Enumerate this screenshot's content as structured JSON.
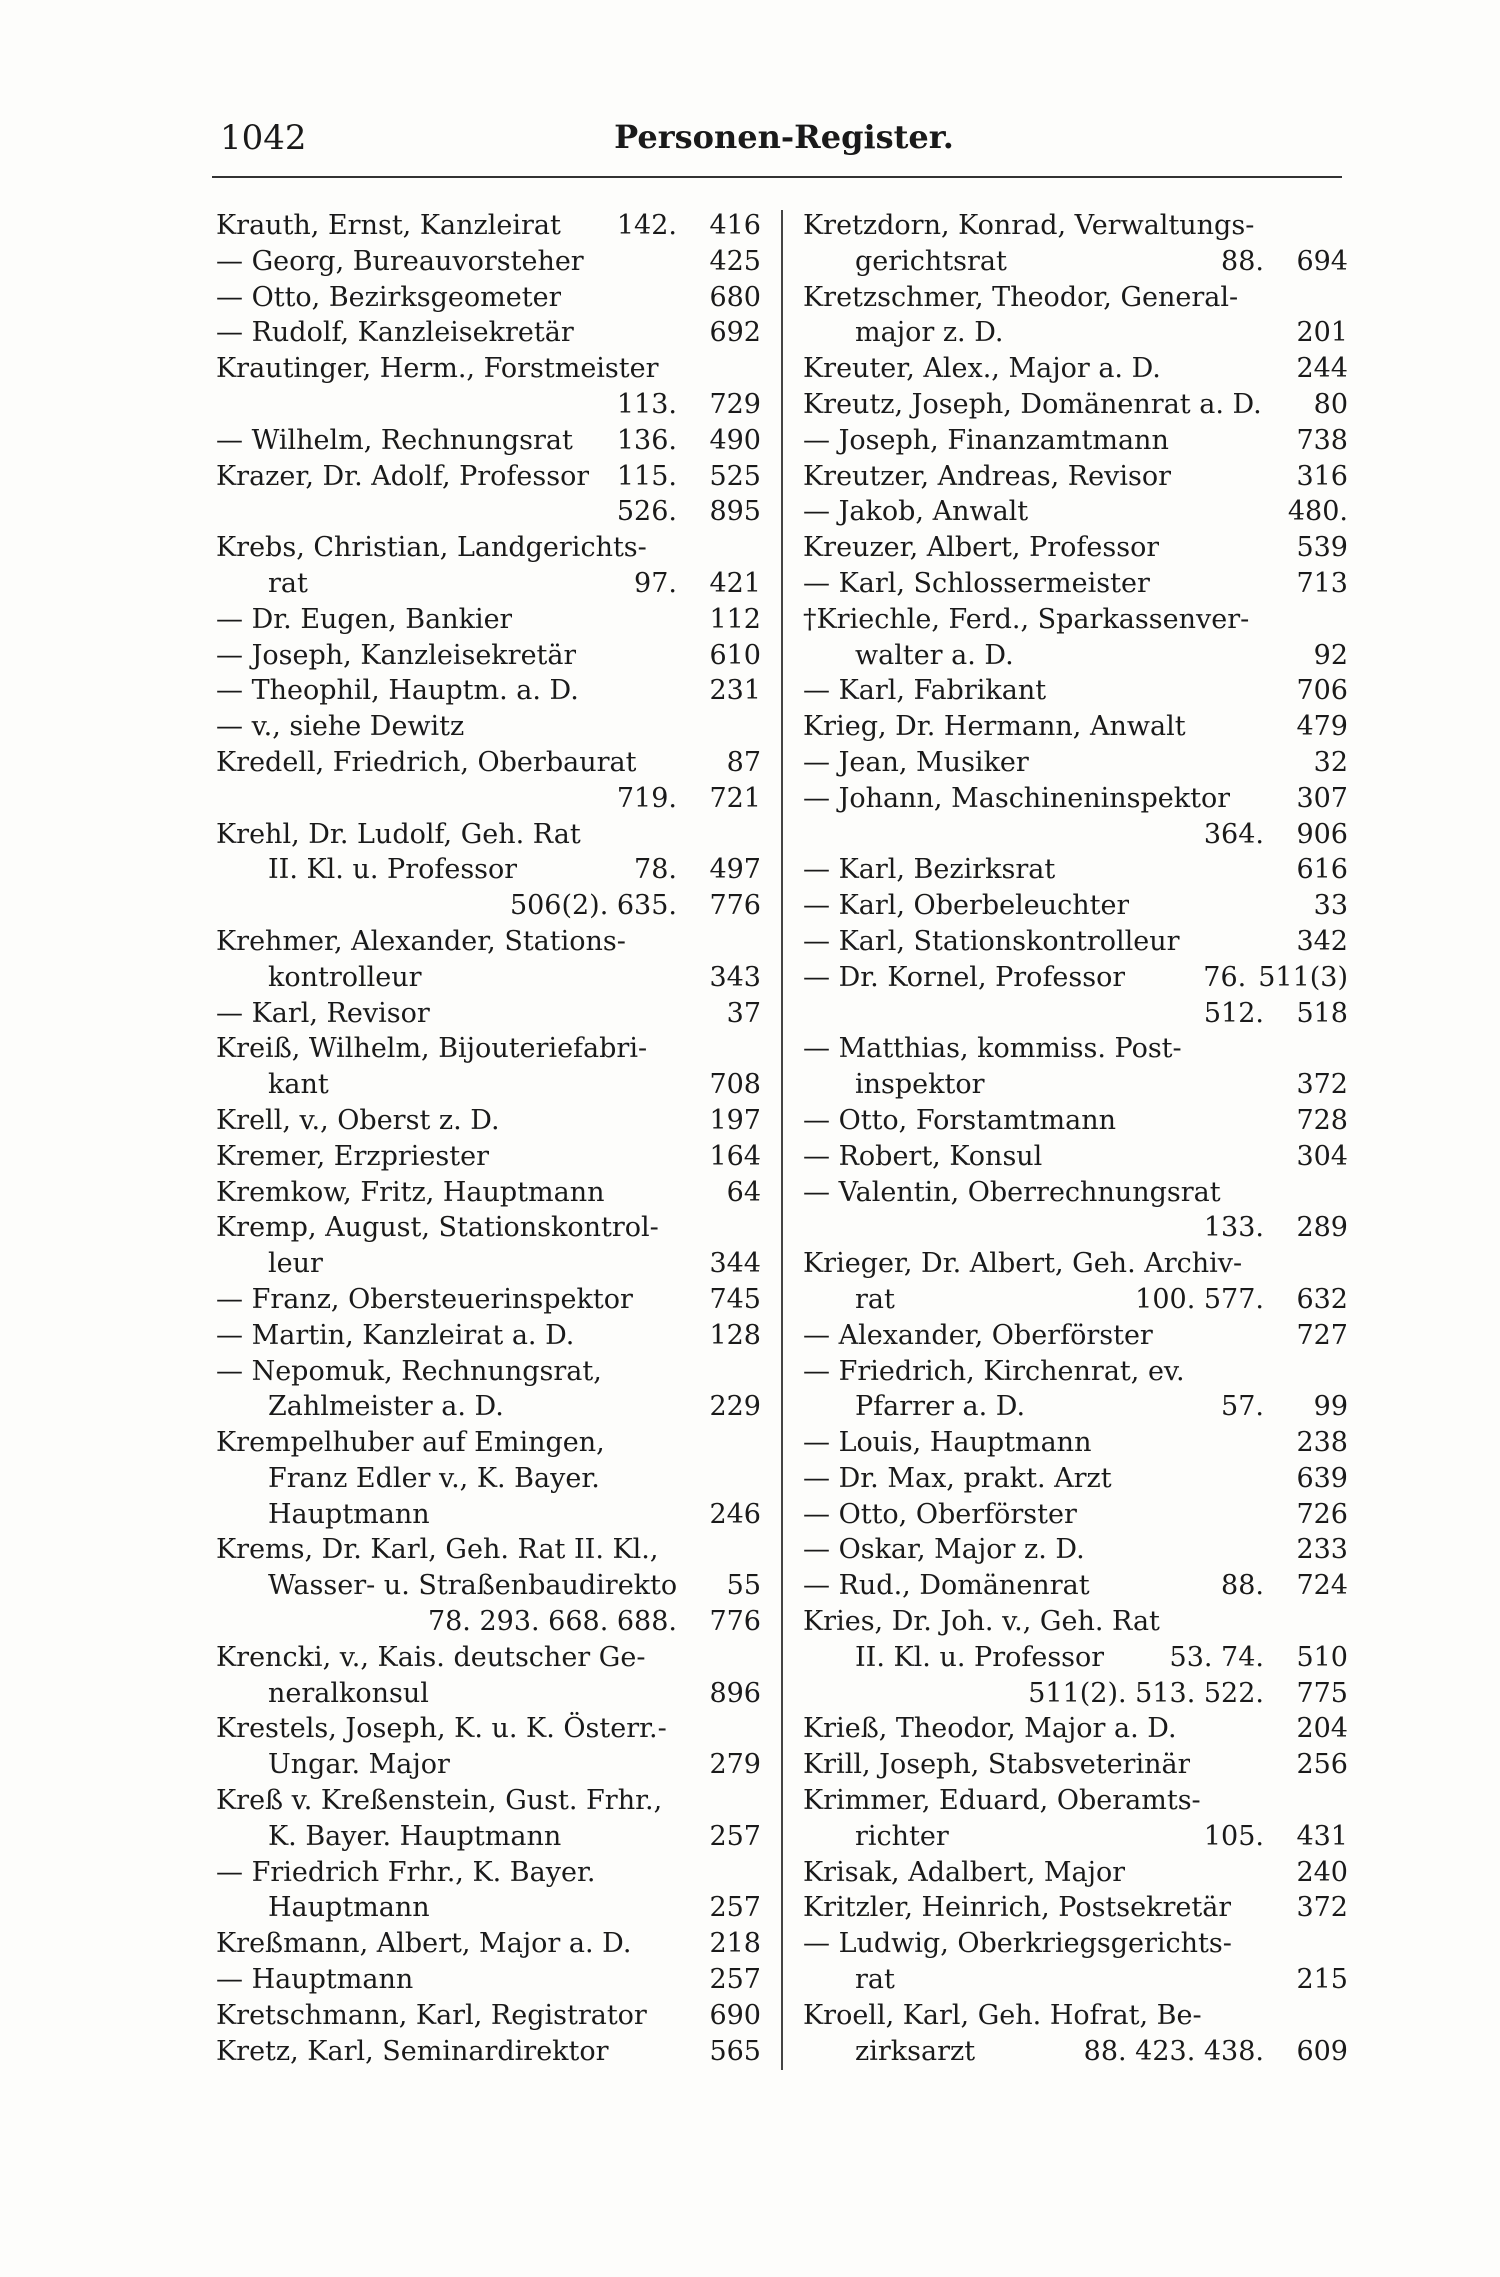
{
  "header": {
    "page_number": "1042",
    "title": "Personen-Register."
  },
  "left_column": [
    {
      "t": "Krauth, Ernst, Kanzleirat",
      "r": "142.",
      "n": "416"
    },
    {
      "t": "— Georg, Bureauvorsteher",
      "r": "",
      "n": "425"
    },
    {
      "t": "— Otto, Bezirksgeometer",
      "r": "",
      "n": "680"
    },
    {
      "t": "— Rudolf, Kanzleisekretär",
      "r": "",
      "n": "692"
    },
    {
      "t": "Krautinger, Herm., Forstmeister",
      "r": "",
      "n": ""
    },
    {
      "t": "",
      "r": "113.",
      "n": "729",
      "indent": true
    },
    {
      "t": "— Wilhelm, Rechnungsrat",
      "r": "136.",
      "n": "490"
    },
    {
      "t": "Krazer, Dr. Adolf, Professor",
      "r": "115.",
      "n": "525"
    },
    {
      "t": "",
      "r": "526.",
      "n": "895",
      "indent": true
    },
    {
      "t": "Krebs, Christian, Landgerichts-",
      "r": "",
      "n": ""
    },
    {
      "t": "rat",
      "r": "97.",
      "n": "421",
      "indent": true
    },
    {
      "t": "— Dr. Eugen, Bankier",
      "r": "",
      "n": "112"
    },
    {
      "t": "— Joseph, Kanzleisekretär",
      "r": "",
      "n": "610"
    },
    {
      "t": "— Theophil, Hauptm. a. D.",
      "r": "",
      "n": "231"
    },
    {
      "t": "— v., siehe Dewitz",
      "r": "",
      "n": ""
    },
    {
      "t": "Kredell, Friedrich, Oberbaurat",
      "r": "",
      "n": "87"
    },
    {
      "t": "",
      "r": "719.",
      "n": "721",
      "indent": true
    },
    {
      "t": "Krehl, Dr. Ludolf, Geh. Rat",
      "r": "",
      "n": ""
    },
    {
      "t": "II. Kl. u. Professor",
      "r": "78.",
      "n": "497",
      "indent": true
    },
    {
      "t": "",
      "r": "506(2). 635.",
      "n": "776",
      "indent": true
    },
    {
      "t": "Krehmer, Alexander, Stations-",
      "r": "",
      "n": ""
    },
    {
      "t": "kontrolleur",
      "r": "",
      "n": "343",
      "indent": true
    },
    {
      "t": "— Karl, Revisor",
      "r": "",
      "n": "37"
    },
    {
      "t": "Kreiß, Wilhelm, Bijouteriefabri-",
      "r": "",
      "n": ""
    },
    {
      "t": "kant",
      "r": "",
      "n": "708",
      "indent": true
    },
    {
      "t": "Krell, v., Oberst z. D.",
      "r": "",
      "n": "197"
    },
    {
      "t": "Kremer, Erzpriester",
      "r": "",
      "n": "164"
    },
    {
      "t": "Kremkow, Fritz, Hauptmann",
      "r": "",
      "n": "64"
    },
    {
      "t": "Kremp, August, Stationskontrol-",
      "r": "",
      "n": ""
    },
    {
      "t": "leur",
      "r": "",
      "n": "344",
      "indent": true
    },
    {
      "t": "— Franz, Obersteuerinspektor",
      "r": "",
      "n": "745"
    },
    {
      "t": "— Martin, Kanzleirat a. D.",
      "r": "",
      "n": "128"
    },
    {
      "t": "— Nepomuk, Rechnungsrat,",
      "r": "",
      "n": ""
    },
    {
      "t": "Zahlmeister a. D.",
      "r": "",
      "n": "229",
      "indent": true
    },
    {
      "t": "Krempelhuber auf Emingen,",
      "r": "",
      "n": ""
    },
    {
      "t": "Franz Edler v., K. Bayer.",
      "r": "",
      "n": "",
      "indent": true
    },
    {
      "t": "Hauptmann",
      "r": "",
      "n": "246",
      "indent": true
    },
    {
      "t": "Krems, Dr. Karl, Geh. Rat II. Kl.,",
      "r": "",
      "n": ""
    },
    {
      "t": "Wasser- u. Straßenbaudirektor",
      "r": "",
      "n": "55",
      "indent": true
    },
    {
      "t": "",
      "r": "78. 293. 668. 688.",
      "n": "776",
      "indent": true
    },
    {
      "t": "Krencki, v., Kais. deutscher Ge-",
      "r": "",
      "n": ""
    },
    {
      "t": "neralkonsul",
      "r": "",
      "n": "896",
      "indent": true
    },
    {
      "t": "Krestels, Joseph, K. u. K. Österr.-",
      "r": "",
      "n": ""
    },
    {
      "t": "Ungar. Major",
      "r": "",
      "n": "279",
      "indent": true
    },
    {
      "t": "Kreß v. Kreßenstein, Gust. Frhr.,",
      "r": "",
      "n": ""
    },
    {
      "t": "K. Bayer. Hauptmann",
      "r": "",
      "n": "257",
      "indent": true
    },
    {
      "t": "— Friedrich Frhr., K. Bayer.",
      "r": "",
      "n": ""
    },
    {
      "t": "Hauptmann",
      "r": "",
      "n": "257",
      "indent": true
    },
    {
      "t": "Kreßmann, Albert, Major a. D.",
      "r": "",
      "n": "218"
    },
    {
      "t": "— Hauptmann",
      "r": "",
      "n": "257"
    },
    {
      "t": "Kretschmann, Karl, Registrator",
      "r": "",
      "n": "690"
    },
    {
      "t": "Kretz, Karl, Seminardirektor",
      "r": "",
      "n": "565"
    }
  ],
  "right_column": [
    {
      "t": "Kretzdorn, Konrad, Verwaltungs-",
      "r": "",
      "n": ""
    },
    {
      "t": "gerichtsrat",
      "r": "88.",
      "n": "694",
      "indent": true
    },
    {
      "t": "Kretzschmer, Theodor, General-",
      "r": "",
      "n": ""
    },
    {
      "t": "major z. D.",
      "r": "",
      "n": "201",
      "indent": true
    },
    {
      "t": "Kreuter, Alex., Major a. D.",
      "r": "",
      "n": "244"
    },
    {
      "t": "Kreutz, Joseph, Domänenrat a. D.",
      "r": "",
      "n": "80"
    },
    {
      "t": "— Joseph, Finanzamtmann",
      "r": "",
      "n": "738"
    },
    {
      "t": "Kreutzer, Andreas, Revisor",
      "r": "",
      "n": "316"
    },
    {
      "t": "— Jakob, Anwalt",
      "r": "",
      "n": "480."
    },
    {
      "t": "Kreuzer, Albert, Professor",
      "r": "",
      "n": "539"
    },
    {
      "t": "— Karl, Schlossermeister",
      "r": "",
      "n": "713"
    },
    {
      "t": "†Kriechle, Ferd., Sparkassenver-",
      "r": "",
      "n": ""
    },
    {
      "t": "walter a. D.",
      "r": "",
      "n": "92",
      "indent": true
    },
    {
      "t": "— Karl, Fabrikant",
      "r": "",
      "n": "706"
    },
    {
      "t": "Krieg, Dr. Hermann, Anwalt",
      "r": "",
      "n": "479"
    },
    {
      "t": "— Jean, Musiker",
      "r": "",
      "n": "32"
    },
    {
      "t": "— Johann, Maschineninspektor",
      "r": "",
      "n": "307"
    },
    {
      "t": "",
      "r": "364.",
      "n": "906",
      "indent": true
    },
    {
      "t": "— Karl, Bezirksrat",
      "r": "",
      "n": "616"
    },
    {
      "t": "— Karl, Oberbeleuchter",
      "r": "",
      "n": "33"
    },
    {
      "t": "— Karl, Stationskontrolleur",
      "r": "",
      "n": "342"
    },
    {
      "t": "— Dr. Kornel, Professor",
      "r": "76.",
      "n": "511(3)"
    },
    {
      "t": "",
      "r": "512.",
      "n": "518",
      "indent": true
    },
    {
      "t": "— Matthias, kommiss. Post-",
      "r": "",
      "n": ""
    },
    {
      "t": "inspektor",
      "r": "",
      "n": "372",
      "indent": true
    },
    {
      "t": "— Otto, Forstamtmann",
      "r": "",
      "n": "728"
    },
    {
      "t": "— Robert, Konsul",
      "r": "",
      "n": "304"
    },
    {
      "t": "— Valentin, Oberrechnungsrat",
      "r": "",
      "n": ""
    },
    {
      "t": "",
      "r": "133.",
      "n": "289",
      "indent": true
    },
    {
      "t": "Krieger, Dr. Albert, Geh. Archiv-",
      "r": "",
      "n": ""
    },
    {
      "t": "rat",
      "r": "100. 577.",
      "n": "632",
      "indent": true
    },
    {
      "t": "— Alexander, Oberförster",
      "r": "",
      "n": "727"
    },
    {
      "t": "— Friedrich, Kirchenrat, ev.",
      "r": "",
      "n": ""
    },
    {
      "t": "Pfarrer a. D.",
      "r": "57.",
      "n": "99",
      "indent": true
    },
    {
      "t": "— Louis, Hauptmann",
      "r": "",
      "n": "238"
    },
    {
      "t": "— Dr. Max, prakt. Arzt",
      "r": "",
      "n": "639"
    },
    {
      "t": "— Otto, Oberförster",
      "r": "",
      "n": "726"
    },
    {
      "t": "— Oskar, Major z. D.",
      "r": "",
      "n": "233"
    },
    {
      "t": "— Rud., Domänenrat",
      "r": "88.",
      "n": "724"
    },
    {
      "t": "Kries, Dr. Joh. v., Geh. Rat",
      "r": "",
      "n": ""
    },
    {
      "t": "II. Kl. u. Professor",
      "r": "53. 74.",
      "n": "510",
      "indent": true
    },
    {
      "t": "",
      "r": "511(2). 513. 522.",
      "n": "775",
      "indent": true
    },
    {
      "t": "Krieß, Theodor, Major a. D.",
      "r": "",
      "n": "204"
    },
    {
      "t": "Krill, Joseph, Stabsveterinär",
      "r": "",
      "n": "256"
    },
    {
      "t": "Krimmer, Eduard, Oberamts-",
      "r": "",
      "n": ""
    },
    {
      "t": "richter",
      "r": "105.",
      "n": "431",
      "indent": true
    },
    {
      "t": "Krisak, Adalbert, Major",
      "r": "",
      "n": "240"
    },
    {
      "t": "Kritzler, Heinrich, Postsekretär",
      "r": "",
      "n": "372"
    },
    {
      "t": "— Ludwig, Oberkriegsgerichts-",
      "r": "",
      "n": ""
    },
    {
      "t": "rat",
      "r": "",
      "n": "215",
      "indent": true
    },
    {
      "t": "Kroell, Karl, Geh. Hofrat, Be-",
      "r": "",
      "n": ""
    },
    {
      "t": "zirksarzt",
      "r": "88. 423. 438.",
      "n": "609",
      "indent": true
    }
  ]
}
